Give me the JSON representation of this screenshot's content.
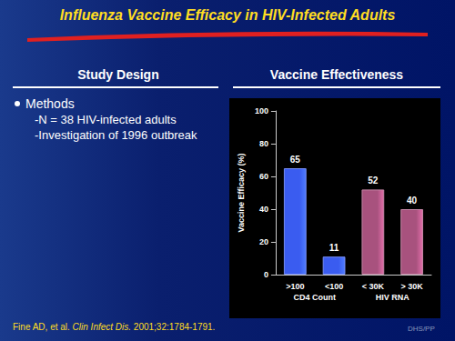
{
  "slide": {
    "title": "Influenza Vaccine Efficacy in HIV-Infected Adults",
    "left_header": "Study Design",
    "right_header": "Vaccine Effectiveness",
    "bullet": "Methods",
    "sub_bullets": [
      "-N = 38 HIV-infected adults",
      "-Investigation of 1996 outbreak"
    ],
    "citation": {
      "authors": "Fine AD, et al.",
      "journal": "Clin Infect Dis.",
      "reference": "2001;32:1784-1791."
    },
    "footer": "DHS/PP"
  },
  "chart_data": {
    "type": "bar",
    "y_label": "Vaccine Efficacy (%)",
    "categories": [
      ">100",
      "<100",
      "< 30K",
      "> 30K"
    ],
    "groups": [
      "CD4 Count",
      "CD4 Count",
      "HIV RNA",
      "HIV RNA"
    ],
    "values": [
      65,
      11,
      52,
      40
    ],
    "colors": [
      "#3a5cf0",
      "#3a5cf0",
      "#a8527e",
      "#a8527e"
    ],
    "ylim": [
      0,
      100
    ],
    "yticks": [
      0,
      20,
      40,
      60,
      80,
      100
    ],
    "grid": false,
    "data_labels": true
  }
}
